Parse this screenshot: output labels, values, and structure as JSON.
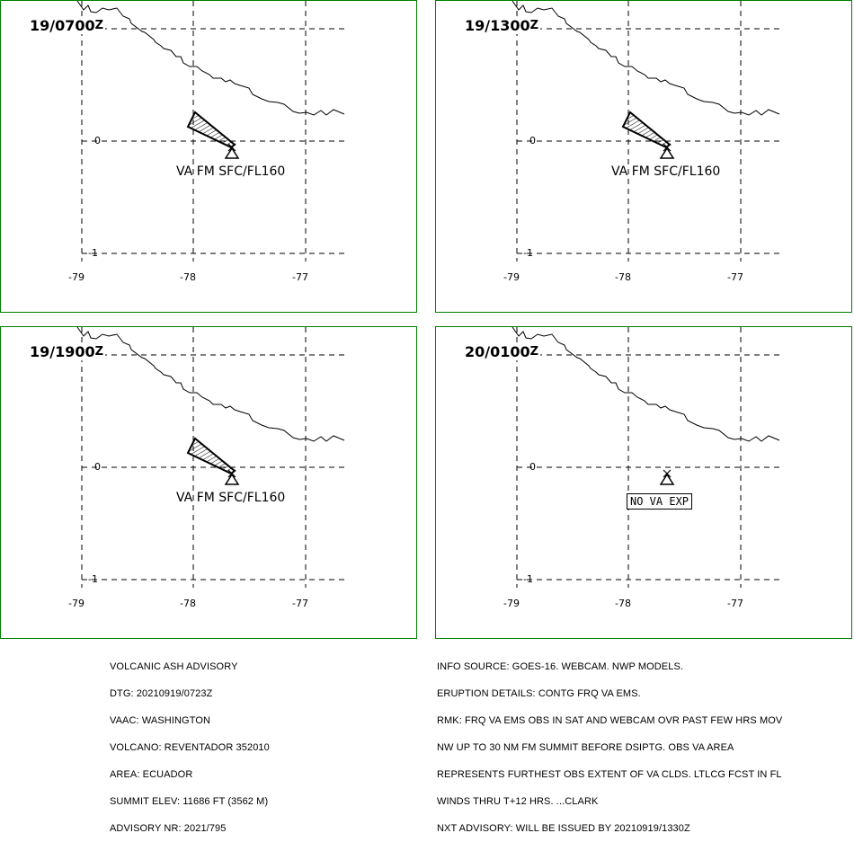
{
  "panels": [
    {
      "time": "19/0700",
      "suffix": "Z",
      "va_label": "VA FM SFC/FL160",
      "ash_area": true
    },
    {
      "time": "19/1300",
      "suffix": "Z",
      "va_label": "VA FM SFC/FL160",
      "ash_area": true
    },
    {
      "time": "19/1900",
      "suffix": "Z",
      "va_label": "VA FM SFC/FL160",
      "ash_area": true
    },
    {
      "time": "20/0100",
      "suffix": "Z",
      "va_label": "NO VA EXP",
      "ash_area": false
    }
  ],
  "grid": {
    "lat_labels": [
      "0",
      "-1"
    ],
    "lon_labels": [
      "-79",
      "-78",
      "-77"
    ]
  },
  "advisory_left": [
    "VOLCANIC ASH ADVISORY",
    "DTG: 20210919/0723Z",
    "VAAC: WASHINGTON",
    "VOLCANO: REVENTADOR 352010",
    "AREA: ECUADOR",
    "SUMMIT ELEV: 11686 FT (3562 M)",
    "ADVISORY NR: 2021/795"
  ],
  "advisory_right": [
    "INFO SOURCE: GOES-16. WEBCAM. NWP MODELS.",
    "ERUPTION DETAILS: CONTG FRQ VA EMS.",
    "RMK: FRQ VA EMS OBS IN SAT AND WEBCAM OVR PAST FEW HRS MOV",
    "NW UP TO 30 NM FM SUMMIT BEFORE DSIPTG. OBS VA AREA",
    "REPRESENTS FURTHEST OBS EXTENT OF VA CLDS. LTLCG FCST IN FL",
    "WINDS THRU T+12 HRS. ...CLARK",
    "NXT ADVISORY: WILL BE ISSUED BY 20210919/1330Z"
  ],
  "colors": {
    "panel_border": "#008000",
    "lines": "#000000"
  }
}
